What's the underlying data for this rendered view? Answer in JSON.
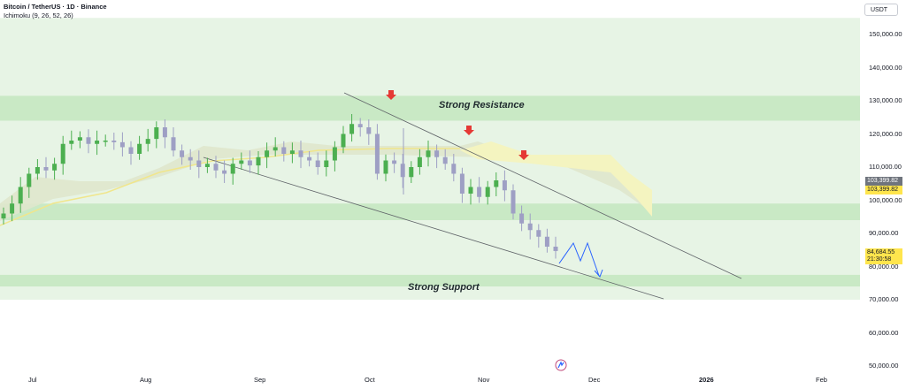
{
  "header": {
    "symbol_line": "Bitcoin / TetherUS · 1D · Binance",
    "indicator_line": "Ichimoku (9, 26, 52, 26)"
  },
  "currency_button": "USDT",
  "price_axis": {
    "labels": [
      "150,000.00",
      "140,000.00",
      "130,000.00",
      "120,000.00",
      "110,000.00",
      "100,000.00",
      "90,000.00",
      "80,000.00",
      "70,000.00",
      "60,000.00",
      "50,000.00"
    ]
  },
  "time_axis": {
    "labels": [
      "Jul",
      "Aug",
      "Sep",
      "Oct",
      "Nov",
      "Dec",
      "2026",
      "Feb"
    ]
  },
  "price_tags": {
    "cloud_top": "103,399.82",
    "cloud_bottom": "103,399.82",
    "last_price": "84,684.55",
    "countdown": "21:30:58"
  },
  "annotations": {
    "resistance": "Strong Resistance",
    "support": "Strong Support"
  },
  "colors": {
    "zone_green": "#c9e9c5",
    "background_green": "#e7f4e5",
    "bull_candle": "#4caf50",
    "bear_candle": "#9e9fc4",
    "cloud_yellow": "#f4f4c0",
    "arrow_red": "#e53935",
    "projection_blue": "#2962ff"
  },
  "chart_data": {
    "type": "candlestick",
    "series": [
      {
        "name": "Bitcoin / TetherUS",
        "last": 84684.55
      },
      {
        "name": "Ichimoku (9, 26, 52, 26)"
      }
    ],
    "y_range": [
      50000,
      155000
    ],
    "y_ticks": [
      150000,
      140000,
      130000,
      120000,
      110000,
      100000,
      90000,
      80000,
      70000,
      60000,
      50000
    ],
    "x_ticks": [
      "Jul",
      "Aug",
      "Sep",
      "Oct",
      "Nov",
      "Dec",
      "2026",
      "Feb"
    ],
    "zones": [
      {
        "name": "Strong Resistance",
        "from": 124000,
        "to": 131500
      },
      {
        "name": "Strong Support",
        "from": 74000,
        "to": 77500
      },
      {
        "from": 94000,
        "to": 99000
      }
    ],
    "closes_approx": [
      96000,
      99000,
      104000,
      108000,
      110000,
      109000,
      111000,
      117000,
      118000,
      119000,
      117000,
      118000,
      118000,
      117500,
      116000,
      114000,
      117000,
      118500,
      122000,
      119000,
      115000,
      113000,
      112000,
      110000,
      111000,
      109000,
      108000,
      111000,
      112000,
      110500,
      113000,
      115000,
      116000,
      114000,
      115000,
      113000,
      112000,
      110000,
      112000,
      116000,
      120000,
      123000,
      122000,
      120000,
      108000,
      112000,
      111000,
      107000,
      110000,
      113000,
      115000,
      113000,
      111000,
      108000,
      102000,
      104000,
      101000,
      104000,
      106000,
      103000,
      96000,
      93000,
      91000,
      89000,
      86000,
      84684
    ]
  }
}
